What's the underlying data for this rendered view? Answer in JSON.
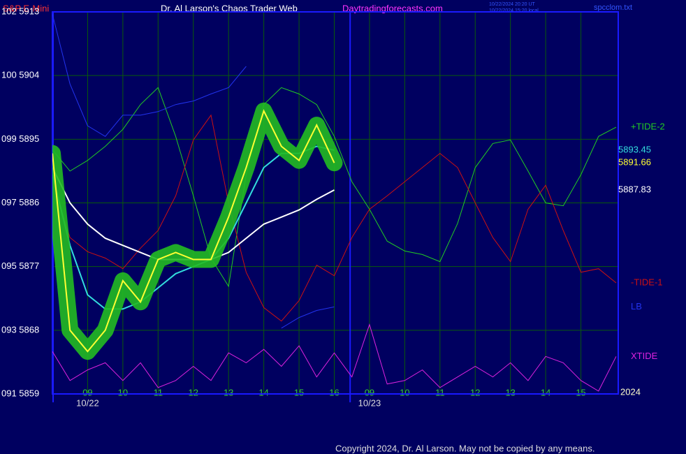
{
  "header": {
    "symbol": "S&P E-Mini",
    "site_title": "Dr. Al Larson's Chaos Trader Web",
    "site_url": "Daytradingforecasts.com",
    "time_ut": "10/22/2024 20:20 UT",
    "time_local": "10/22/2024 15:20 local",
    "file": "spcclom.txt"
  },
  "footer": "Copyright 2024, Dr. Al Larson. May not be copied by any means.",
  "chart_data": {
    "type": "line",
    "background": "#000060",
    "grid": true,
    "grid_color": "#0a5a0a",
    "border_color": "#1a1aff",
    "categories": [
      null,
      null,
      "09",
      null,
      "10",
      null,
      "11",
      null,
      "12",
      null,
      "13",
      null,
      "14",
      null,
      "15",
      null,
      "16",
      null,
      "09",
      null,
      "10",
      null,
      "11",
      null,
      "12",
      null,
      "13",
      null,
      "14",
      null,
      "15",
      null,
      null
    ],
    "dates": [
      "10/22",
      "10/23"
    ],
    "year": "2024",
    "ylim": [
      5859,
      5913
    ],
    "yticks": [
      {
        "value": 5859,
        "label": "091 5859"
      },
      {
        "value": 5868,
        "label": "093 5868"
      },
      {
        "value": 5877,
        "label": "095 5877"
      },
      {
        "value": 5886,
        "label": "097 5886"
      },
      {
        "value": 5895,
        "label": "099 5895"
      },
      {
        "value": 5904,
        "label": "100 5904"
      },
      {
        "value": 5913,
        "label": "102 5913"
      }
    ],
    "series": [
      {
        "name": "+TIDE-2",
        "color": "#22cc22",
        "values": [
          5893.5,
          5890.5,
          5892,
          5894,
          5896.4,
          5899.9,
          5902.3,
          5895.4,
          5887,
          5878.2,
          5874.2,
          5890,
          5899.9,
          5902.3,
          5901.4,
          5899.9,
          5895.4,
          5889,
          5885.1,
          5880.6,
          5879.2,
          5878.7,
          5877.7,
          5883.1,
          5891,
          5894.4,
          5894.9,
          5890.5,
          5886,
          5885.6,
          5890,
          5895.4,
          5896.7
        ]
      },
      {
        "name": "-TIDE-1",
        "color": "#cc1111",
        "values": [
          5889,
          5881.1,
          5879.1,
          5878.2,
          5876.7,
          5879.6,
          5882.1,
          5887,
          5894.9,
          5898.4,
          5886,
          5876.2,
          5871.2,
          5869.3,
          5872.2,
          5877.2,
          5875.7,
          5881.1,
          5885.1,
          5887,
          5889,
          5891,
          5893,
          5891,
          5886,
          5881.1,
          5877.7,
          5885.1,
          5888.5,
          5882.1,
          5876.2,
          5876.7,
          5874.7
        ]
      },
      {
        "name": "LB",
        "color": "#2233ee",
        "values": [
          5912.7,
          5902.8,
          5896.9,
          5895.4,
          5898.4,
          5898.4,
          5898.9,
          5899.9,
          5900.4,
          5901.4,
          5902.3,
          5905.3,
          null,
          5868.3,
          5869.8,
          5870.8,
          5871.3,
          null,
          null,
          null,
          null,
          null,
          null,
          null,
          null,
          null,
          null,
          null,
          null,
          null,
          null,
          null,
          null
        ]
      },
      {
        "name": "XTIDE",
        "color": "#dd22dd",
        "values": [
          5865,
          5860.9,
          5862.4,
          5863.4,
          5860.9,
          5863.4,
          5859.9,
          5860.9,
          5862.9,
          5860.9,
          5864.8,
          5863.4,
          5865.3,
          5862.9,
          5865.8,
          5861.4,
          5864.8,
          5861.4,
          5868.8,
          5860.4,
          5860.9,
          5862.4,
          5859.9,
          5861.4,
          5862.9,
          5861.4,
          5863.4,
          5860.9,
          5864.3,
          5863.4,
          5860.9,
          5859.4,
          5864.3
        ]
      },
      {
        "color": "#ffffff",
        "label_last": true,
        "values": [
          5891,
          5886,
          5883,
          5881,
          5880,
          5879,
          5878,
          5878,
          5878,
          5878,
          5879,
          5881,
          5883,
          5884,
          5885,
          5886.5,
          5887.83,
          null,
          null,
          null,
          null,
          null,
          null,
          null,
          null,
          null,
          null,
          null,
          null,
          null,
          null,
          null,
          null
        ]
      },
      {
        "color": "#33dddd",
        "label_last": true,
        "values": [
          5890,
          5880,
          5873,
          5871,
          5871,
          5872,
          5874,
          5876,
          5877,
          5878,
          5881,
          5886,
          5891,
          5893,
          5893,
          5894,
          5893.45,
          null,
          null,
          null,
          null,
          null,
          null,
          null,
          null,
          null,
          null,
          null,
          null,
          null,
          null,
          null,
          null
        ]
      },
      {
        "color": "#ffff33",
        "halo": "#22bb22",
        "label_last": true,
        "values": [
          5893,
          5868,
          5865,
          5868,
          5875,
          5872,
          5878,
          5879,
          5878,
          5878,
          5884,
          5891,
          5899,
          5894,
          5892,
          5897,
          5891.66,
          null,
          null,
          null,
          null,
          null,
          null,
          null,
          null,
          null,
          null,
          null,
          null,
          null,
          null,
          null,
          null
        ]
      }
    ]
  }
}
